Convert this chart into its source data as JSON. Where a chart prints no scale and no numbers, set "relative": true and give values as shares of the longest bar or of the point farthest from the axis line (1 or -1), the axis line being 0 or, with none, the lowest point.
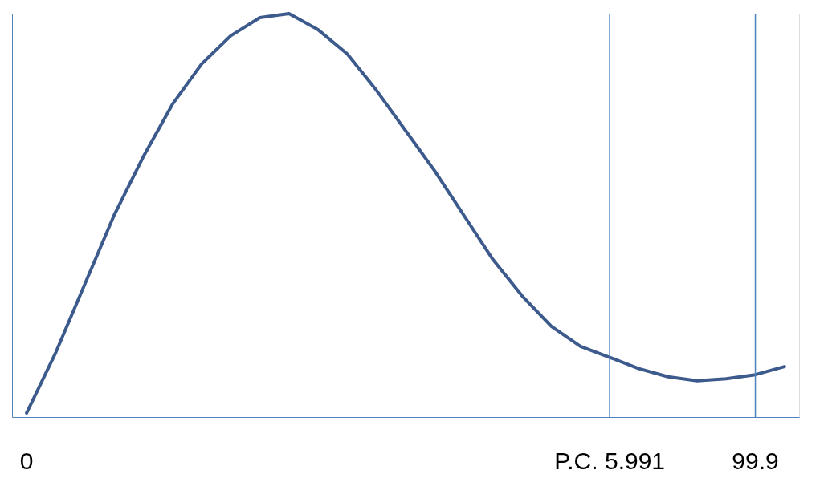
{
  "chart_data": {
    "type": "line",
    "relative": true,
    "grid": false,
    "marker": "none",
    "line_style": "solid",
    "categories": [
      "0",
      null,
      null,
      null,
      null,
      null,
      null,
      null,
      null,
      null,
      null,
      null,
      null,
      null,
      null,
      null,
      null,
      null,
      null,
      null,
      "P.C. 5.991",
      null,
      null,
      null,
      null,
      "99.9",
      null
    ],
    "series": [
      {
        "color": "#3c5a8c",
        "values": [
          0.01,
          0.16,
          0.33,
          0.5,
          0.645,
          0.775,
          0.875,
          0.945,
          0.99,
          1.0,
          0.96,
          0.9,
          0.81,
          0.71,
          0.61,
          0.5,
          0.39,
          0.3,
          0.225,
          0.175,
          0.148,
          0.12,
          0.1,
          0.09,
          0.095,
          0.105,
          0.125
        ]
      }
    ],
    "ref_lines": [
      {
        "axis": "x",
        "value": "P.C. 5.991",
        "color": "#4f81bd"
      },
      {
        "axis": "x",
        "value": "99.9",
        "color": "#4f81bd"
      }
    ]
  }
}
